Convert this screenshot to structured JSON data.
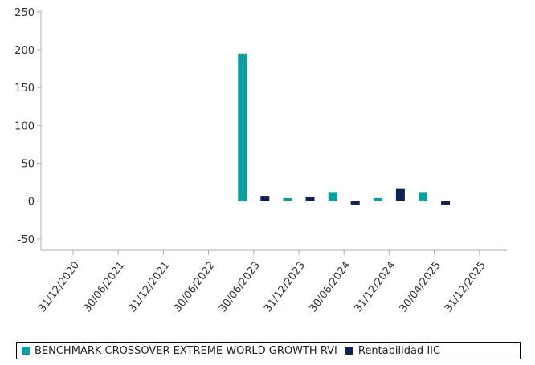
{
  "chart_data": {
    "type": "bar",
    "categories": [
      "31/12/2020",
      "30/06/2021",
      "31/12/2021",
      "30/06/2022",
      "30/06/2023",
      "31/12/2023",
      "30/06/2024",
      "31/12/2024",
      "30/04/2025",
      "31/12/2025"
    ],
    "series": [
      {
        "name": "BENCHMARK CROSSOVER EXTREME WORLD GROWTH RVI",
        "color": "#0a9e9f",
        "points": [
          {
            "x": "30/06/2023",
            "y": 195
          },
          {
            "x": "31/12/2023",
            "y": 4
          },
          {
            "x": "30/06/2024",
            "y": 12
          },
          {
            "x": "31/12/2024",
            "y": 4
          },
          {
            "x": "30/04/2025",
            "y": 12
          }
        ]
      },
      {
        "name": "Rentabilidad IIC",
        "color": "#0f2350",
        "points": [
          {
            "x": "30/06/2023",
            "y": 7
          },
          {
            "x": "31/12/2023",
            "y": 6
          },
          {
            "x": "30/06/2024",
            "y": -5
          },
          {
            "x": "31/12/2024",
            "y": 17
          },
          {
            "x": "30/04/2025",
            "y": -5
          }
        ]
      }
    ],
    "yticks": [
      250,
      200,
      150,
      100,
      50,
      0,
      -50
    ],
    "ylim": [
      -65,
      252
    ],
    "grid": false,
    "legend_position": "bottom"
  }
}
